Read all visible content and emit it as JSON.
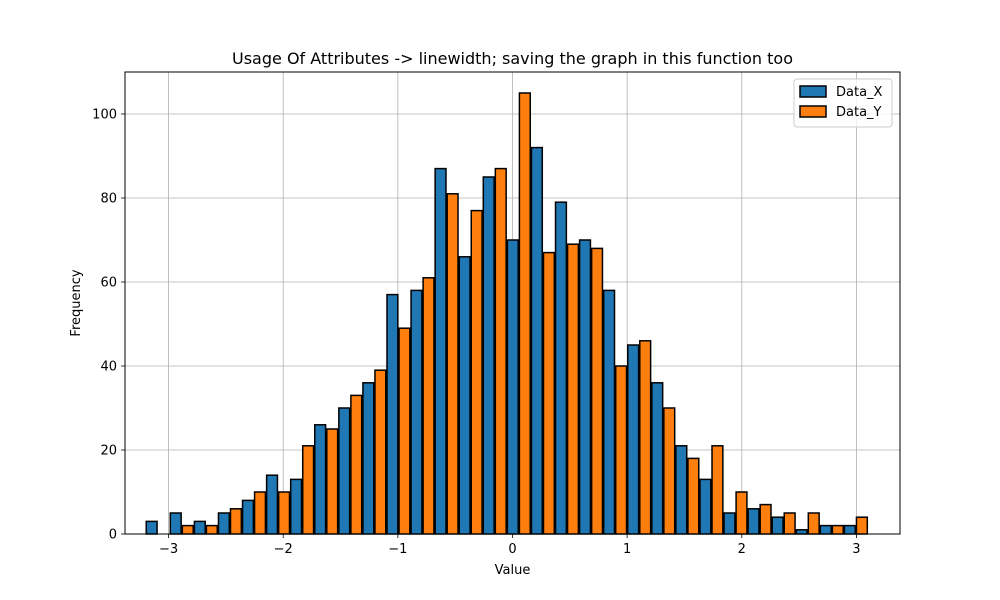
{
  "chart_data": {
    "type": "bar",
    "title": "Usage Of Attributes -> linewidth; saving the graph in this function too",
    "xlabel": "Value",
    "ylabel": "Frequency",
    "xlim": [
      -3.38,
      3.38
    ],
    "ylim": [
      0,
      110
    ],
    "xticks": [
      -3,
      -2,
      -1,
      0,
      1,
      2,
      3
    ],
    "xtick_labels": [
      "−3",
      "−2",
      "−1",
      "0",
      "1",
      "2",
      "3"
    ],
    "yticks": [
      0,
      20,
      40,
      60,
      80,
      100
    ],
    "ytick_labels": [
      "0",
      "20",
      "40",
      "60",
      "80",
      "100"
    ],
    "grid": true,
    "legend_position": "top-right",
    "bin_start": -3.2,
    "bin_width": 0.21,
    "series": [
      {
        "name": "Data_X",
        "color": "#1f77b4",
        "values": [
          3,
          5,
          3,
          5,
          8,
          14,
          13,
          26,
          30,
          36,
          57,
          58,
          87,
          66,
          85,
          70,
          92,
          79,
          70,
          58,
          45,
          36,
          21,
          13,
          5,
          6,
          4,
          1,
          2,
          2
        ]
      },
      {
        "name": "Data_Y",
        "color": "#ff7f0e",
        "values": [
          0,
          2,
          2,
          6,
          10,
          10,
          21,
          25,
          33,
          39,
          49,
          61,
          81,
          77,
          87,
          105,
          67,
          69,
          68,
          40,
          46,
          30,
          18,
          21,
          10,
          7,
          5,
          5,
          2,
          4
        ]
      }
    ]
  }
}
